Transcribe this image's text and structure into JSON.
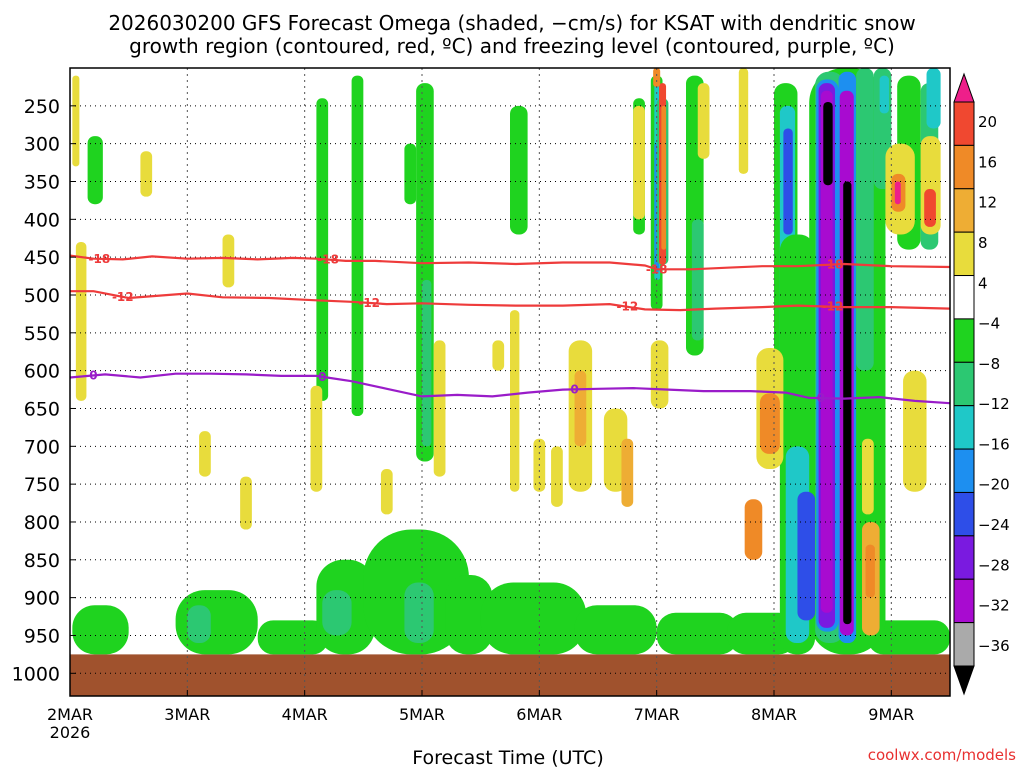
{
  "title_line1": "2026030200 GFS Forecast Omega (shaded, −cm/s) for KSAT with dendritic snow",
  "title_line2": "growth region (contoured, red, ºC) and freezing level (contoured, purple, ºC)",
  "x_axis_title": "Forecast Time (UTC)",
  "credit": "coolwx.com/models",
  "chart_data": {
    "type": "heatmap",
    "xlabel": "Forecast Time (UTC)",
    "x_ticks": [
      "2MAR",
      "3MAR",
      "4MAR",
      "5MAR",
      "6MAR",
      "7MAR",
      "8MAR",
      "9MAR"
    ],
    "x_year_label": "2026",
    "x_range_days": [
      0,
      7.5
    ],
    "y_ticks": [
      250,
      300,
      350,
      400,
      450,
      500,
      550,
      600,
      650,
      700,
      750,
      800,
      850,
      900,
      950,
      1000
    ],
    "y_range_hpa": [
      200,
      1030
    ],
    "colorbar": {
      "labels": [
        "20",
        "16",
        "12",
        "8",
        "4",
        "−4",
        "−8",
        "−12",
        "−16",
        "−20",
        "−24",
        "−28",
        "−32",
        "−36"
      ],
      "bins": [
        {
          "lo": 20,
          "hi": 24,
          "color": "#ee1f8a"
        },
        {
          "lo": 16,
          "hi": 20,
          "color": "#f04830"
        },
        {
          "lo": 12,
          "hi": 16,
          "color": "#ef8a27"
        },
        {
          "lo": 8,
          "hi": 12,
          "color": "#eead34"
        },
        {
          "lo": 4,
          "hi": 8,
          "color": "#e8dc3c"
        },
        {
          "lo": -4,
          "hi": 4,
          "color": "#ffffff"
        },
        {
          "lo": -8,
          "hi": -4,
          "color": "#1fd31f"
        },
        {
          "lo": -12,
          "hi": -8,
          "color": "#2cc872"
        },
        {
          "lo": -16,
          "hi": -12,
          "color": "#1fc8c8"
        },
        {
          "lo": -20,
          "hi": -16,
          "color": "#1d8ff0"
        },
        {
          "lo": -24,
          "hi": -20,
          "color": "#2e4ee8"
        },
        {
          "lo": -28,
          "hi": -24,
          "color": "#7a1ae0"
        },
        {
          "lo": -32,
          "hi": -28,
          "color": "#a80bd0"
        },
        {
          "lo": -36,
          "hi": -32,
          "color": "#aaaaaa"
        },
        {
          "lo": -40,
          "hi": -36,
          "color": "#000000"
        }
      ]
    },
    "contours": [
      {
        "name": "-18",
        "label": "-18",
        "color": "#ee3b3b",
        "points": [
          [
            0,
            448
          ],
          [
            0.2,
            452
          ],
          [
            0.45,
            453
          ],
          [
            0.7,
            449
          ],
          [
            1.0,
            452
          ],
          [
            1.3,
            451
          ],
          [
            1.6,
            453
          ],
          [
            1.9,
            451
          ],
          [
            2.1,
            452
          ],
          [
            2.35,
            455
          ],
          [
            2.6,
            455
          ],
          [
            3.0,
            458
          ],
          [
            3.4,
            457
          ],
          [
            3.8,
            459
          ],
          [
            4.2,
            457
          ],
          [
            4.6,
            457
          ],
          [
            4.9,
            461
          ],
          [
            5.0,
            466
          ],
          [
            5.3,
            466
          ],
          [
            5.6,
            464
          ],
          [
            5.9,
            462
          ],
          [
            6.2,
            462
          ],
          [
            6.6,
            459
          ],
          [
            7.0,
            462
          ],
          [
            7.5,
            463
          ]
        ],
        "label_at": [
          0.25,
          2.2,
          5.0,
          6.5
        ]
      },
      {
        "name": "-12",
        "label": "-12",
        "color": "#ee3b3b",
        "points": [
          [
            0,
            495
          ],
          [
            0.2,
            495
          ],
          [
            0.5,
            504
          ],
          [
            1.0,
            498
          ],
          [
            1.3,
            503
          ],
          [
            1.7,
            504
          ],
          [
            2.1,
            507
          ],
          [
            2.4,
            509
          ],
          [
            2.7,
            512
          ],
          [
            3.0,
            511
          ],
          [
            3.4,
            513
          ],
          [
            3.8,
            514
          ],
          [
            4.2,
            514
          ],
          [
            4.6,
            512
          ],
          [
            4.9,
            519
          ],
          [
            5.2,
            520
          ],
          [
            5.5,
            518
          ],
          [
            5.9,
            516
          ],
          [
            6.2,
            514
          ],
          [
            6.6,
            516
          ],
          [
            7.0,
            516
          ],
          [
            7.5,
            518
          ]
        ],
        "label_at": [
          0.45,
          2.55,
          4.75,
          6.5
        ]
      },
      {
        "name": "freezing",
        "label": "0",
        "color": "#9a1cc9",
        "points": [
          [
            0,
            609
          ],
          [
            0.3,
            605
          ],
          [
            0.6,
            609
          ],
          [
            0.9,
            604
          ],
          [
            1.2,
            604
          ],
          [
            1.5,
            605
          ],
          [
            1.8,
            607
          ],
          [
            2.1,
            607
          ],
          [
            2.4,
            614
          ],
          [
            2.7,
            624
          ],
          [
            3.0,
            634
          ],
          [
            3.3,
            632
          ],
          [
            3.6,
            634
          ],
          [
            3.9,
            629
          ],
          [
            4.2,
            625
          ],
          [
            4.5,
            624
          ],
          [
            4.8,
            623
          ],
          [
            5.1,
            625
          ],
          [
            5.4,
            627
          ],
          [
            5.8,
            627
          ],
          [
            6.1,
            629
          ],
          [
            6.3,
            636
          ],
          [
            6.6,
            637
          ],
          [
            6.9,
            635
          ],
          [
            7.2,
            640
          ],
          [
            7.5,
            643
          ]
        ],
        "label_at": [
          0.2,
          2.15,
          4.3,
          6.4
        ]
      }
    ],
    "features": [
      {
        "kind": "surface",
        "p_top": 975,
        "p_bottom": 1030,
        "color": "#a0522d"
      },
      {
        "kind": "blob",
        "x0": 0.02,
        "x1": 0.5,
        "p_top": 910,
        "p_bottom": 975,
        "bin": -6
      },
      {
        "kind": "blob",
        "x0": 0.9,
        "x1": 1.6,
        "p_top": 890,
        "p_bottom": 975,
        "bin": -6
      },
      {
        "kind": "blob",
        "x0": 1.0,
        "x1": 1.2,
        "p_top": 910,
        "p_bottom": 960,
        "bin": -10
      },
      {
        "kind": "blob",
        "x0": 1.6,
        "x1": 2.2,
        "p_top": 930,
        "p_bottom": 975,
        "bin": -6
      },
      {
        "kind": "blob",
        "x0": 2.1,
        "x1": 2.6,
        "p_top": 850,
        "p_bottom": 975,
        "bin": -6
      },
      {
        "kind": "blob",
        "x0": 2.15,
        "x1": 2.4,
        "p_top": 890,
        "p_bottom": 950,
        "bin": -10
      },
      {
        "kind": "blob",
        "x0": 2.5,
        "x1": 3.4,
        "p_top": 810,
        "p_bottom": 975,
        "bin": -6
      },
      {
        "kind": "blob",
        "x0": 2.85,
        "x1": 3.1,
        "p_top": 880,
        "p_bottom": 960,
        "bin": -10
      },
      {
        "kind": "blob",
        "x0": 3.2,
        "x1": 3.6,
        "p_top": 870,
        "p_bottom": 975,
        "bin": -6
      },
      {
        "kind": "blob",
        "x0": 3.5,
        "x1": 4.4,
        "p_top": 880,
        "p_bottom": 975,
        "bin": -6
      },
      {
        "kind": "blob",
        "x0": 4.3,
        "x1": 5.0,
        "p_top": 910,
        "p_bottom": 975,
        "bin": -6
      },
      {
        "kind": "blob",
        "x0": 5.0,
        "x1": 5.7,
        "p_top": 920,
        "p_bottom": 975,
        "bin": -6
      },
      {
        "kind": "blob",
        "x0": 5.6,
        "x1": 6.2,
        "p_top": 920,
        "p_bottom": 975,
        "bin": -6
      },
      {
        "kind": "blob",
        "x0": 6.8,
        "x1": 7.5,
        "p_top": 930,
        "p_bottom": 975,
        "bin": -6
      },
      {
        "kind": "blob",
        "x0": 2.1,
        "x1": 2.2,
        "p_top": 240,
        "p_bottom": 640,
        "bin": -6
      },
      {
        "kind": "blob",
        "x0": 2.4,
        "x1": 2.5,
        "p_top": 210,
        "p_bottom": 660,
        "bin": -6
      },
      {
        "kind": "blob",
        "x0": 2.95,
        "x1": 3.1,
        "p_top": 220,
        "p_bottom": 720,
        "bin": -6
      },
      {
        "kind": "blob",
        "x0": 3.0,
        "x1": 3.08,
        "p_top": 480,
        "p_bottom": 700,
        "bin": -10
      },
      {
        "kind": "blob",
        "x0": 0.15,
        "x1": 0.28,
        "p_top": 290,
        "p_bottom": 380,
        "bin": -6
      },
      {
        "kind": "blob",
        "x0": 2.85,
        "x1": 2.95,
        "p_top": 300,
        "p_bottom": 380,
        "bin": -6
      },
      {
        "kind": "blob",
        "x0": 3.75,
        "x1": 3.9,
        "p_top": 250,
        "p_bottom": 420,
        "bin": -6
      },
      {
        "kind": "blob",
        "x0": 4.8,
        "x1": 4.9,
        "p_top": 240,
        "p_bottom": 420,
        "bin": -6
      },
      {
        "kind": "blob",
        "x0": 4.95,
        "x1": 5.05,
        "p_top": 210,
        "p_bottom": 520,
        "bin": -6
      },
      {
        "kind": "blob",
        "x0": 4.98,
        "x1": 5.03,
        "p_top": 220,
        "p_bottom": 480,
        "bin": -14
      },
      {
        "kind": "blob",
        "x0": 4.98,
        "x1": 5.02,
        "p_top": 300,
        "p_bottom": 470,
        "bin": -18
      },
      {
        "kind": "blob",
        "x0": 5.25,
        "x1": 5.4,
        "p_top": 210,
        "p_bottom": 580,
        "bin": -6
      },
      {
        "kind": "blob",
        "x0": 5.3,
        "x1": 5.4,
        "p_top": 400,
        "p_bottom": 560,
        "bin": -10
      },
      {
        "kind": "blob",
        "x0": 6.0,
        "x1": 6.2,
        "p_top": 220,
        "p_bottom": 670,
        "bin": -6
      },
      {
        "kind": "blob",
        "x0": 6.05,
        "x1": 6.18,
        "p_top": 250,
        "p_bottom": 650,
        "bin": -14
      },
      {
        "kind": "blob",
        "x0": 6.08,
        "x1": 6.16,
        "p_top": 280,
        "p_bottom": 420,
        "bin": -22
      },
      {
        "kind": "blob",
        "x0": 6.3,
        "x1": 6.95,
        "p_top": 200,
        "p_bottom": 975,
        "bin": -6
      },
      {
        "kind": "blob",
        "x0": 6.35,
        "x1": 6.6,
        "p_top": 205,
        "p_bottom": 960,
        "bin": -10
      },
      {
        "kind": "blob",
        "x0": 6.36,
        "x1": 6.55,
        "p_top": 215,
        "p_bottom": 945,
        "bin": -18
      },
      {
        "kind": "blob",
        "x0": 6.38,
        "x1": 6.52,
        "p_top": 220,
        "p_bottom": 940,
        "bin": -26
      },
      {
        "kind": "blob",
        "x0": 6.4,
        "x1": 6.5,
        "p_top": 230,
        "p_bottom": 920,
        "bin": -30
      },
      {
        "kind": "blob",
        "x0": 6.42,
        "x1": 6.5,
        "p_top": 245,
        "p_bottom": 355,
        "bin": -38
      },
      {
        "kind": "blob",
        "x0": 6.55,
        "x1": 6.7,
        "p_top": 205,
        "p_bottom": 960,
        "bin": -18
      },
      {
        "kind": "blob",
        "x0": 6.56,
        "x1": 6.68,
        "p_top": 230,
        "p_bottom": 950,
        "bin": -30
      },
      {
        "kind": "blob",
        "x0": 6.59,
        "x1": 6.66,
        "p_top": 350,
        "p_bottom": 935,
        "bin": -38
      },
      {
        "kind": "blob",
        "x0": 6.7,
        "x1": 6.85,
        "p_top": 200,
        "p_bottom": 600,
        "bin": -10
      },
      {
        "kind": "blob",
        "x0": 6.85,
        "x1": 7.0,
        "p_top": 200,
        "p_bottom": 360,
        "bin": -10
      },
      {
        "kind": "blob",
        "x0": 6.9,
        "x1": 6.98,
        "p_top": 210,
        "p_bottom": 260,
        "bin": -14
      },
      {
        "kind": "blob",
        "x0": 7.05,
        "x1": 7.25,
        "p_top": 210,
        "p_bottom": 440,
        "bin": -6
      },
      {
        "kind": "blob",
        "x0": 7.25,
        "x1": 7.4,
        "p_top": 220,
        "p_bottom": 440,
        "bin": -10
      },
      {
        "kind": "blob",
        "x0": 7.3,
        "x1": 7.42,
        "p_top": 200,
        "p_bottom": 280,
        "bin": -14
      },
      {
        "kind": "blob",
        "x0": 6.05,
        "x1": 6.35,
        "p_top": 420,
        "p_bottom": 975,
        "bin": -6
      },
      {
        "kind": "blob",
        "x0": 6.1,
        "x1": 6.3,
        "p_top": 700,
        "p_bottom": 960,
        "bin": -14
      },
      {
        "kind": "blob",
        "x0": 6.2,
        "x1": 6.35,
        "p_top": 760,
        "p_bottom": 930,
        "bin": -22
      },
      {
        "kind": "blob",
        "x0": 5.0,
        "x1": 5.1,
        "p_top": 240,
        "p_bottom": 460,
        "bin": -10
      },
      {
        "kind": "blob",
        "x0": 5.02,
        "x1": 5.08,
        "p_top": 220,
        "p_bottom": 460,
        "bin": 18
      },
      {
        "kind": "blob",
        "x0": 5.04,
        "x1": 5.08,
        "p_top": 250,
        "p_bottom": 440,
        "bin": 14
      },
      {
        "kind": "blob",
        "x0": 4.97,
        "x1": 5.03,
        "p_top": 200,
        "p_bottom": 225,
        "bin": 14
      },
      {
        "kind": "blob",
        "x0": 4.95,
        "x1": 5.1,
        "p_top": 560,
        "p_bottom": 650,
        "bin": 6
      },
      {
        "kind": "blob",
        "x0": 5.85,
        "x1": 6.08,
        "p_top": 570,
        "p_bottom": 730,
        "bin": 6
      },
      {
        "kind": "blob",
        "x0": 5.88,
        "x1": 6.05,
        "p_top": 630,
        "p_bottom": 710,
        "bin": 14
      },
      {
        "kind": "blob",
        "x0": 5.75,
        "x1": 5.9,
        "p_top": 770,
        "p_bottom": 850,
        "bin": 14
      },
      {
        "kind": "blob",
        "x0": 6.75,
        "x1": 6.9,
        "p_top": 800,
        "p_bottom": 950,
        "bin": 10
      },
      {
        "kind": "blob",
        "x0": 6.78,
        "x1": 6.86,
        "p_top": 830,
        "p_bottom": 900,
        "bin": 14
      },
      {
        "kind": "blob",
        "x0": 6.75,
        "x1": 6.85,
        "p_top": 690,
        "p_bottom": 790,
        "bin": 6
      },
      {
        "kind": "blob",
        "x0": 6.95,
        "x1": 7.2,
        "p_top": 300,
        "p_bottom": 420,
        "bin": 6
      },
      {
        "kind": "blob",
        "x0": 7.0,
        "x1": 7.12,
        "p_top": 340,
        "p_bottom": 390,
        "bin": 14
      },
      {
        "kind": "blob",
        "x0": 7.03,
        "x1": 7.08,
        "p_top": 350,
        "p_bottom": 380,
        "bin": 22
      },
      {
        "kind": "blob",
        "x0": 7.25,
        "x1": 7.42,
        "p_top": 290,
        "p_bottom": 420,
        "bin": 6
      },
      {
        "kind": "blob",
        "x0": 7.28,
        "x1": 7.38,
        "p_top": 360,
        "p_bottom": 410,
        "bin": 18
      },
      {
        "kind": "blob",
        "x0": 7.1,
        "x1": 7.3,
        "p_top": 600,
        "p_bottom": 760,
        "bin": 6
      },
      {
        "kind": "blob",
        "x0": 4.25,
        "x1": 4.45,
        "p_top": 560,
        "p_bottom": 760,
        "bin": 6
      },
      {
        "kind": "blob",
        "x0": 4.3,
        "x1": 4.4,
        "p_top": 600,
        "p_bottom": 700,
        "bin": 10
      },
      {
        "kind": "blob",
        "x0": 4.55,
        "x1": 4.75,
        "p_top": 650,
        "p_bottom": 760,
        "bin": 6
      },
      {
        "kind": "blob",
        "x0": 4.7,
        "x1": 4.8,
        "p_top": 690,
        "p_bottom": 780,
        "bin": 10
      },
      {
        "kind": "blob",
        "x0": 4.1,
        "x1": 4.2,
        "p_top": 700,
        "p_bottom": 780,
        "bin": 6
      },
      {
        "kind": "blob",
        "x0": 4.8,
        "x1": 4.9,
        "p_top": 250,
        "p_bottom": 400,
        "bin": 6
      },
      {
        "kind": "blob",
        "x0": 5.7,
        "x1": 5.78,
        "p_top": 200,
        "p_bottom": 340,
        "bin": 6
      },
      {
        "kind": "blob",
        "x0": 0.05,
        "x1": 0.14,
        "p_top": 430,
        "p_bottom": 640,
        "bin": 6
      },
      {
        "kind": "blob",
        "x0": 0.02,
        "x1": 0.08,
        "p_top": 210,
        "p_bottom": 330,
        "bin": 6
      },
      {
        "kind": "blob",
        "x0": 0.6,
        "x1": 0.7,
        "p_top": 310,
        "p_bottom": 370,
        "bin": 6
      },
      {
        "kind": "blob",
        "x0": 1.1,
        "x1": 1.2,
        "p_top": 680,
        "p_bottom": 740,
        "bin": 6
      },
      {
        "kind": "blob",
        "x0": 1.3,
        "x1": 1.4,
        "p_top": 420,
        "p_bottom": 490,
        "bin": 6
      },
      {
        "kind": "blob",
        "x0": 1.45,
        "x1": 1.55,
        "p_top": 740,
        "p_bottom": 810,
        "bin": 6
      },
      {
        "kind": "blob",
        "x0": 2.05,
        "x1": 2.15,
        "p_top": 620,
        "p_bottom": 760,
        "bin": 6
      },
      {
        "kind": "blob",
        "x0": 2.65,
        "x1": 2.75,
        "p_top": 730,
        "p_bottom": 790,
        "bin": 6
      },
      {
        "kind": "blob",
        "x0": 3.1,
        "x1": 3.2,
        "p_top": 560,
        "p_bottom": 740,
        "bin": 6
      },
      {
        "kind": "blob",
        "x0": 3.75,
        "x1": 3.83,
        "p_top": 520,
        "p_bottom": 760,
        "bin": 6
      },
      {
        "kind": "blob",
        "x0": 3.95,
        "x1": 4.05,
        "p_top": 690,
        "p_bottom": 760,
        "bin": 6
      },
      {
        "kind": "blob",
        "x0": 3.6,
        "x1": 3.7,
        "p_top": 560,
        "p_bottom": 600,
        "bin": 6
      },
      {
        "kind": "blob",
        "x0": 5.35,
        "x1": 5.45,
        "p_top": 220,
        "p_bottom": 320,
        "bin": 6
      }
    ]
  }
}
